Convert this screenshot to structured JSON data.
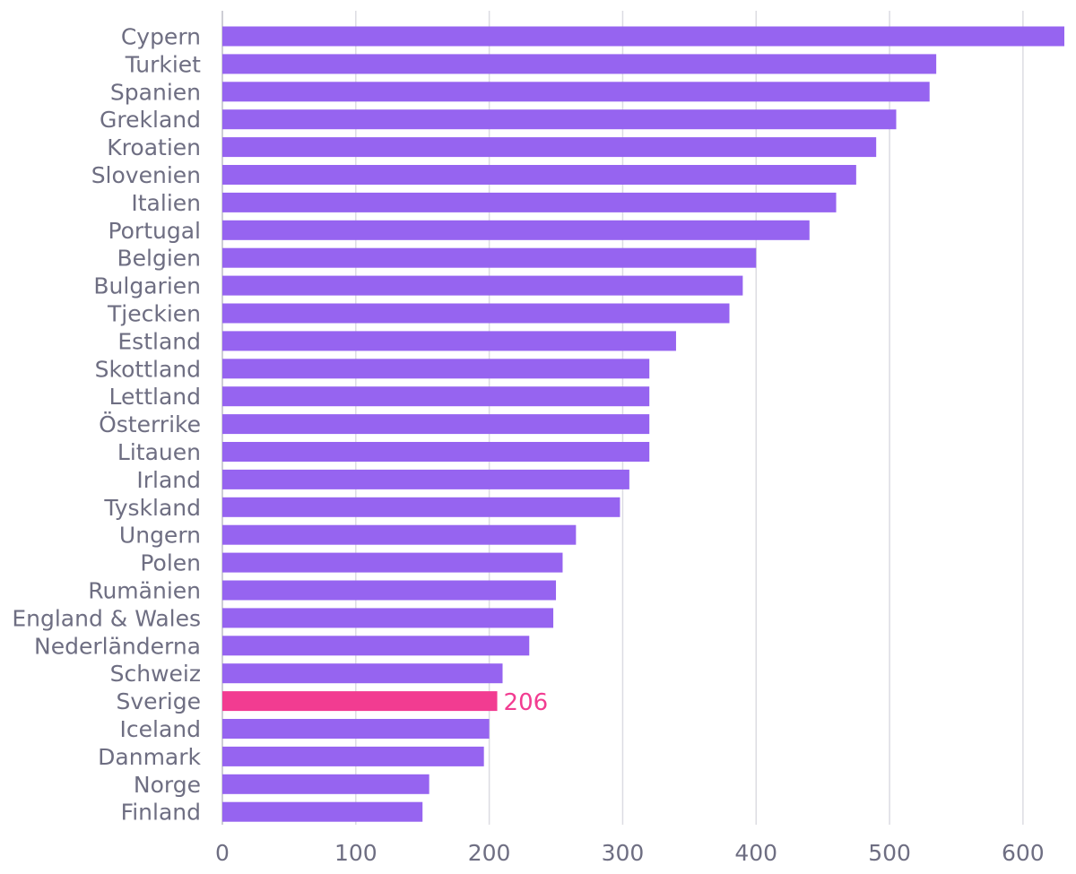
{
  "chart_data": {
    "type": "bar",
    "orientation": "horizontal",
    "title": "",
    "xlabel": "",
    "ylabel": "",
    "categories": [
      "Cypern",
      "Turkiet",
      "Spanien",
      "Grekland",
      "Kroatien",
      "Slovenien",
      "Italien",
      "Portugal",
      "Belgien",
      "Bulgarien",
      "Tjeckien",
      "Estland",
      "Skottland",
      "Lettland",
      "Österrike",
      "Litauen",
      "Irland",
      "Tyskland",
      "Ungern",
      "Polen",
      "Rumänien",
      "England & Wales",
      "Nederländerna",
      "Schweiz",
      "Sverige",
      "Iceland",
      "Danmark",
      "Norge",
      "Finland"
    ],
    "values": [
      631,
      535,
      530,
      505,
      490,
      475,
      460,
      440,
      400,
      390,
      380,
      340,
      320,
      320,
      320,
      320,
      305,
      298,
      265,
      255,
      250,
      248,
      230,
      210,
      206,
      200,
      196,
      155,
      150
    ],
    "highlight": {
      "category": "Sverige",
      "value_label": "206"
    },
    "xlim": [
      0,
      631
    ],
    "xticks": [
      "0",
      "100",
      "200",
      "300",
      "400",
      "500",
      "600"
    ],
    "grid": true,
    "legend": "none",
    "colors": {
      "bar": "#9664f0",
      "highlight": "#f23c91",
      "grid": "#dcdce2",
      "text": "#6e6e82"
    }
  }
}
